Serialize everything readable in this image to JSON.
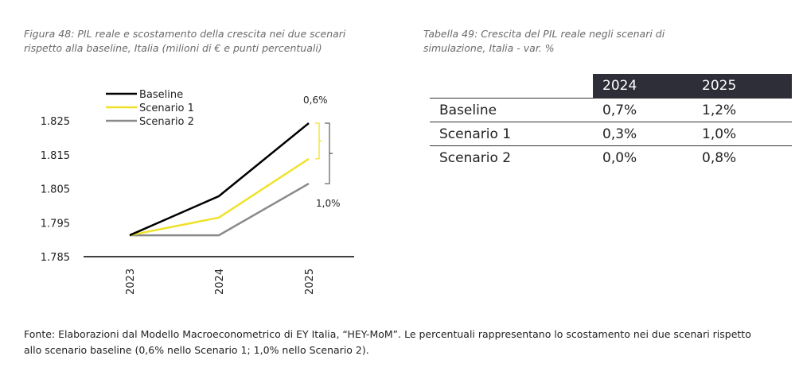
{
  "figure": {
    "caption": "Figura 48: PIL reale e scostamento della crescita nei due scenari rispetto alla baseline, Italia (milioni di € e punti percentuali)"
  },
  "table": {
    "caption": "Tabella 49: Crescita del PIL reale negli scenari di simulazione, Italia - var. %",
    "columns": [
      "",
      "2024",
      "2025"
    ],
    "rows": [
      {
        "label": "Baseline",
        "values": [
          "0,7%",
          "1,2%"
        ]
      },
      {
        "label": "Scenario 1",
        "values": [
          "0,3%",
          "1,0%"
        ]
      },
      {
        "label": "Scenario 2",
        "values": [
          "0,0%",
          "0,8%"
        ]
      }
    ]
  },
  "source": "Fonte: Elaborazioni dal Modello Macroeconometrico di EY Italia, “HEY-MoM”. Le percentuali rappresentano lo scostamento nei due scenari rispetto allo scenario baseline (0,6% nello Scenario 1; 1,0% nello Scenario 2).",
  "chart_data": {
    "type": "line",
    "categories": [
      "2023",
      "2024",
      "2025"
    ],
    "ylim": [
      1.785,
      1.825
    ],
    "yticks": [
      "1.785",
      "1.795",
      "1.805",
      "1.815",
      "1.825"
    ],
    "ytick_values": [
      1.785,
      1.795,
      1.805,
      1.815,
      1.825
    ],
    "grid": false,
    "legend": "top-left",
    "series": [
      {
        "name": "Baseline",
        "color": "#000000",
        "values": [
          1.7913,
          1.8028,
          1.8243
        ]
      },
      {
        "name": "Scenario 1",
        "color": "#f0e22a",
        "values": [
          1.7913,
          1.7965,
          1.8138
        ]
      },
      {
        "name": "Scenario 2",
        "color": "#8a8a8a",
        "values": [
          1.7913,
          1.7913,
          1.8065
        ]
      }
    ],
    "annotations": [
      {
        "text": "0,6%",
        "color": "#f0e22a"
      },
      {
        "text": "1,0%",
        "color": "#8a8a8a"
      }
    ]
  }
}
